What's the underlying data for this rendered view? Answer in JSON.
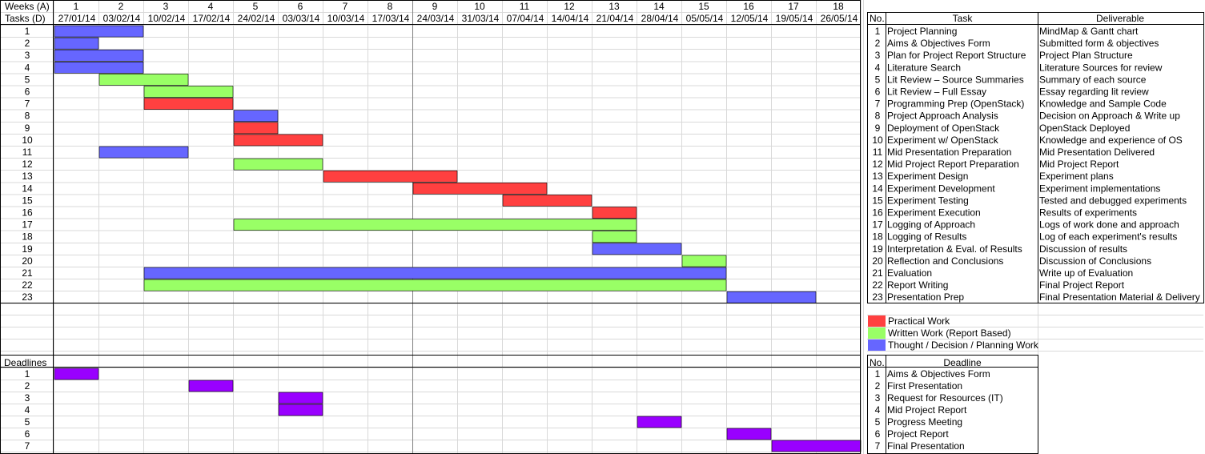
{
  "header": {
    "weeks_label": "Weeks (A)",
    "tasks_label": "Tasks (D)",
    "deadlines_label": "Deadlines",
    "week_numbers": [
      "1",
      "2",
      "3",
      "4",
      "5",
      "6",
      "7",
      "8",
      "9",
      "10",
      "11",
      "12",
      "13",
      "14",
      "15",
      "16",
      "17",
      "18"
    ],
    "week_dates": [
      "27/01/14",
      "03/02/14",
      "10/02/14",
      "17/02/14",
      "24/02/14",
      "03/03/14",
      "10/03/14",
      "17/03/14",
      "24/03/14",
      "31/03/14",
      "07/04/14",
      "14/04/14",
      "21/04/14",
      "28/04/14",
      "05/05/14",
      "12/05/14",
      "19/05/14",
      "26/05/14"
    ]
  },
  "task_table": {
    "headers": {
      "no": "No.",
      "task": "Task",
      "deliverable": "Deliverable"
    },
    "rows": [
      {
        "no": "1",
        "task": "Project Planning",
        "deliverable": "MindMap & Gantt chart"
      },
      {
        "no": "2",
        "task": "Aims & Objectives Form",
        "deliverable": "Submitted form & objectives"
      },
      {
        "no": "3",
        "task": "Plan for Project Report Structure",
        "deliverable": "Project Plan Structure"
      },
      {
        "no": "4",
        "task": "Literature Search",
        "deliverable": "Literature Sources for review"
      },
      {
        "no": "5",
        "task": "Lit Review – Source Summaries",
        "deliverable": "Summary of each source"
      },
      {
        "no": "6",
        "task": "Lit Review – Full Essay",
        "deliverable": "Essay regarding lit review"
      },
      {
        "no": "7",
        "task": "Programming Prep (OpenStack)",
        "deliverable": "Knowledge and Sample Code"
      },
      {
        "no": "8",
        "task": "Project Approach Analysis",
        "deliverable": "Decision on Approach & Write up"
      },
      {
        "no": "9",
        "task": "Deployment of OpenStack",
        "deliverable": "OpenStack Deployed"
      },
      {
        "no": "10",
        "task": "Experiment w/ OpenStack",
        "deliverable": "Knowledge and experience of OS"
      },
      {
        "no": "11",
        "task": "Mid Presentation Preparation",
        "deliverable": "Mid Presentation Delivered"
      },
      {
        "no": "12",
        "task": "Mid Project Report Preparation",
        "deliverable": "Mid Project Report"
      },
      {
        "no": "13",
        "task": "Experiment Design",
        "deliverable": "Experiment plans"
      },
      {
        "no": "14",
        "task": "Experiment Development",
        "deliverable": "Experiment implementations"
      },
      {
        "no": "15",
        "task": "Experiment Testing",
        "deliverable": "Tested and debugged experiments"
      },
      {
        "no": "16",
        "task": "Experiment Execution",
        "deliverable": "Results of experiments"
      },
      {
        "no": "17",
        "task": "Logging of Approach",
        "deliverable": "Logs of work done and approach"
      },
      {
        "no": "18",
        "task": "Logging of Results",
        "deliverable": "Log of each experiment's results"
      },
      {
        "no": "19",
        "task": "Interpretation & Eval. of Results",
        "deliverable": "Discussion of results"
      },
      {
        "no": "20",
        "task": "Reflection and Conclusions",
        "deliverable": "Discussion of Conclusions"
      },
      {
        "no": "21",
        "task": "Evaluation",
        "deliverable": "Write up of Evaluation"
      },
      {
        "no": "22",
        "task": "Report Writing",
        "deliverable": "Final Project Report"
      },
      {
        "no": "23",
        "task": "Presentation Prep",
        "deliverable": "Final Presentation Material & Delivery"
      }
    ]
  },
  "legend": [
    {
      "type": "practical",
      "label": "Practical Work",
      "color": "#ff4040"
    },
    {
      "type": "written",
      "label": "Written Work (Report Based)",
      "color": "#99ff66"
    },
    {
      "type": "thought",
      "label": "Thought / Decision / Planning Work",
      "color": "#6666ff"
    }
  ],
  "deadline_table": {
    "headers": {
      "no": "No.",
      "deadline": "Deadline"
    },
    "rows": [
      {
        "no": "1",
        "name": "Aims & Objectives Form"
      },
      {
        "no": "2",
        "name": "First Presentation"
      },
      {
        "no": "3",
        "name": "Request for Resources (IT)"
      },
      {
        "no": "4",
        "name": "Mid Project Report"
      },
      {
        "no": "5",
        "name": "Progress Meeting"
      },
      {
        "no": "6",
        "name": "Project Report"
      },
      {
        "no": "7",
        "name": "Final Presentation"
      }
    ]
  },
  "chart_data": {
    "type": "gantt",
    "x_unit": "week",
    "tasks": [
      {
        "no": 1,
        "type": "thought",
        "start_week": 1,
        "end_week": 2
      },
      {
        "no": 2,
        "type": "thought",
        "start_week": 1,
        "end_week": 1
      },
      {
        "no": 3,
        "type": "thought",
        "start_week": 1,
        "end_week": 2
      },
      {
        "no": 4,
        "type": "thought",
        "start_week": 1,
        "end_week": 2
      },
      {
        "no": 5,
        "type": "written",
        "start_week": 2,
        "end_week": 3
      },
      {
        "no": 6,
        "type": "written",
        "start_week": 3,
        "end_week": 4
      },
      {
        "no": 7,
        "type": "practical",
        "start_week": 3,
        "end_week": 4
      },
      {
        "no": 8,
        "type": "thought",
        "start_week": 5,
        "end_week": 5
      },
      {
        "no": 9,
        "type": "practical",
        "start_week": 5,
        "end_week": 5
      },
      {
        "no": 10,
        "type": "practical",
        "start_week": 5,
        "end_week": 6
      },
      {
        "no": 11,
        "type": "thought",
        "start_week": 2,
        "end_week": 3
      },
      {
        "no": 12,
        "type": "written",
        "start_week": 5,
        "end_week": 6
      },
      {
        "no": 13,
        "type": "practical",
        "start_week": 7,
        "end_week": 9
      },
      {
        "no": 14,
        "type": "practical",
        "start_week": 9,
        "end_week": 11
      },
      {
        "no": 15,
        "type": "practical",
        "start_week": 11,
        "end_week": 12
      },
      {
        "no": 16,
        "type": "practical",
        "start_week": 13,
        "end_week": 13
      },
      {
        "no": 17,
        "type": "written",
        "start_week": 5,
        "end_week": 13
      },
      {
        "no": 18,
        "type": "written",
        "start_week": 13,
        "end_week": 13
      },
      {
        "no": 19,
        "type": "thought",
        "start_week": 13,
        "end_week": 14
      },
      {
        "no": 20,
        "type": "written",
        "start_week": 15,
        "end_week": 15
      },
      {
        "no": 21,
        "type": "thought",
        "start_week": 3,
        "end_week": 15
      },
      {
        "no": 22,
        "type": "written",
        "start_week": 3,
        "end_week": 15
      },
      {
        "no": 23,
        "type": "thought",
        "start_week": 16,
        "end_week": 17
      }
    ],
    "deadlines": [
      {
        "no": 1,
        "week": 1
      },
      {
        "no": 2,
        "week": 4
      },
      {
        "no": 3,
        "week": 6
      },
      {
        "no": 4,
        "week": 6
      },
      {
        "no": 5,
        "week": 14
      },
      {
        "no": 6,
        "week": 16
      },
      {
        "no": 7,
        "week": 17,
        "end_week": 18
      }
    ],
    "deadline_color": "#9900ff",
    "grid": true
  }
}
